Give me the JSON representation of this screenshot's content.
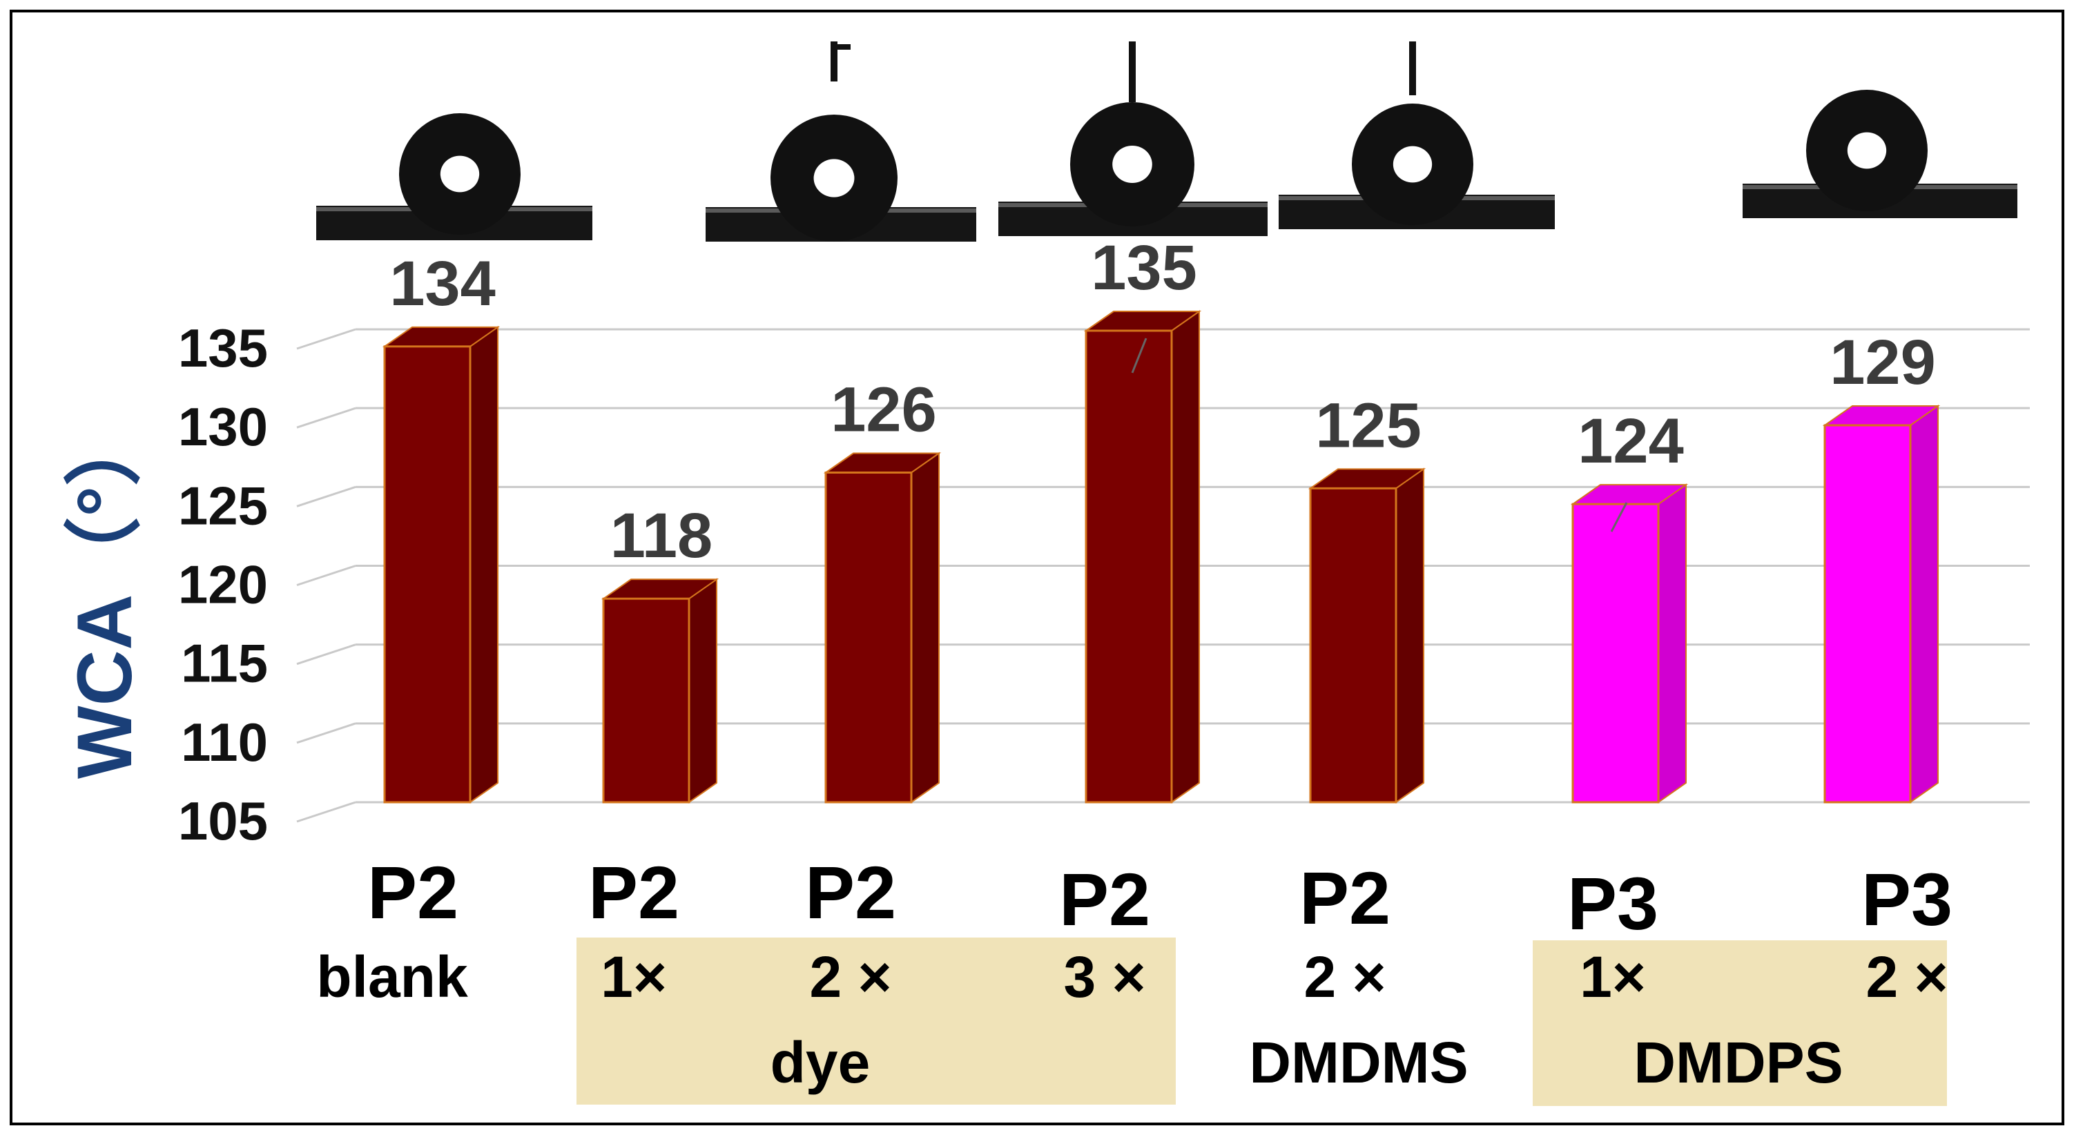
{
  "chart_data": {
    "type": "bar",
    "ylabel": "WCA（°）",
    "ylim": [
      105,
      135
    ],
    "yticks": [
      105,
      110,
      115,
      120,
      125,
      130,
      135
    ],
    "grid": true,
    "series": [
      {
        "values": [
          134,
          118,
          126,
          135,
          125,
          124,
          129
        ],
        "colors": [
          "#7a0000",
          "#7a0000",
          "#7a0000",
          "#7a0000",
          "#7a0000",
          "#ff00ff",
          "#ff00ff"
        ]
      }
    ],
    "categories": [
      {
        "main": "P2",
        "sub": "blank"
      },
      {
        "main": "P2",
        "sub": "1×"
      },
      {
        "main": "P2",
        "sub": "2 ×"
      },
      {
        "main": "P2",
        "sub": "3 ×"
      },
      {
        "main": "P2",
        "sub": "2 ×"
      },
      {
        "main": "P3",
        "sub": "1×"
      },
      {
        "main": "P3",
        "sub": "2 ×"
      }
    ],
    "group_labels": [
      {
        "text": "dye",
        "color": "#f0e3b8"
      },
      {
        "text": "DMDMS",
        "color": ""
      },
      {
        "text": "DMDPS",
        "color": "#f0e3b8"
      }
    ],
    "droplet_images": 6
  }
}
